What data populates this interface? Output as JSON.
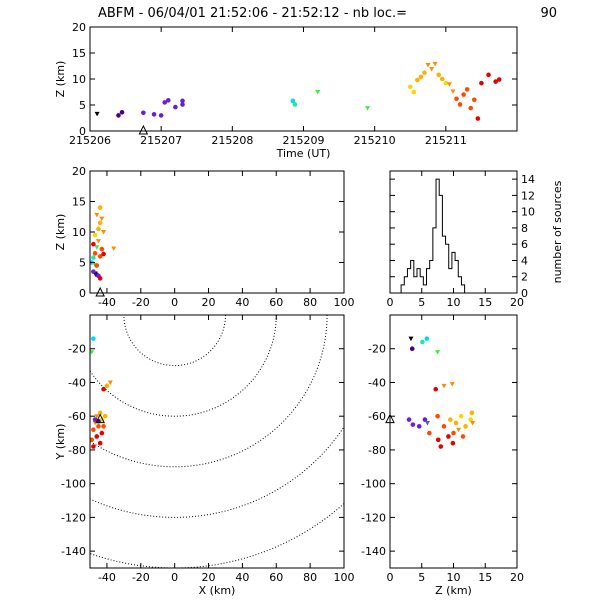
{
  "title": "ABFM - 06/04/01 21:52:06 - 21:52:12 - nb loc.=",
  "count": "90",
  "colors": [
    "#000000",
    "#4b0082",
    "#6a1fd6",
    "#3a5bff",
    "#00d8ff",
    "#22e8a8",
    "#3ef03e",
    "#ffd400",
    "#ffb000",
    "#ff8c00",
    "#ff4a00",
    "#e60000"
  ],
  "chart_data": [
    {
      "type": "scatter",
      "name": "z-vs-time",
      "xlabel": "Time (UT)",
      "ylabel": "Z (km)",
      "xlim": [
        215206,
        215212
      ],
      "ylim": [
        0,
        20
      ],
      "xticks": [
        "215206",
        "215207",
        "215208",
        "215209",
        "215210",
        "215211"
      ],
      "yticks": [
        "0",
        "5",
        "10",
        "15",
        "20"
      ],
      "station_marker": {
        "x": 215206.75,
        "y": 0
      },
      "points": [
        {
          "x": 215206.1,
          "y": 3.3,
          "c": 0
        },
        {
          "x": 215206.4,
          "y": 3.0,
          "c": 1
        },
        {
          "x": 215206.45,
          "y": 3.6,
          "c": 1
        },
        {
          "x": 215206.75,
          "y": 3.5,
          "c": 2
        },
        {
          "x": 215206.9,
          "y": 3.2,
          "c": 2
        },
        {
          "x": 215207.0,
          "y": 3.0,
          "c": 2
        },
        {
          "x": 215207.05,
          "y": 5.5,
          "c": 2
        },
        {
          "x": 215207.1,
          "y": 5.9,
          "c": 2
        },
        {
          "x": 215207.2,
          "y": 4.6,
          "c": 2
        },
        {
          "x": 215207.3,
          "y": 5.8,
          "c": 2
        },
        {
          "x": 215207.3,
          "y": 5.1,
          "c": 2
        },
        {
          "x": 215208.85,
          "y": 5.8,
          "c": 4
        },
        {
          "x": 215208.88,
          "y": 5.1,
          "c": 5
        },
        {
          "x": 215209.2,
          "y": 7.5,
          "c": 6
        },
        {
          "x": 215209.9,
          "y": 4.4,
          "c": 6
        },
        {
          "x": 215210.5,
          "y": 8.5,
          "c": 7
        },
        {
          "x": 215210.55,
          "y": 7.5,
          "c": 7
        },
        {
          "x": 215210.6,
          "y": 9.8,
          "c": 8
        },
        {
          "x": 215210.65,
          "y": 10.4,
          "c": 8
        },
        {
          "x": 215210.7,
          "y": 11.2,
          "c": 8
        },
        {
          "x": 215210.75,
          "y": 12.7,
          "c": 9
        },
        {
          "x": 215210.8,
          "y": 11.9,
          "c": 9
        },
        {
          "x": 215210.85,
          "y": 12.9,
          "c": 9
        },
        {
          "x": 215210.9,
          "y": 10.8,
          "c": 8
        },
        {
          "x": 215210.95,
          "y": 10.0,
          "c": 8
        },
        {
          "x": 215211.0,
          "y": 9.2,
          "c": 7
        },
        {
          "x": 215211.05,
          "y": 9.0,
          "c": 9
        },
        {
          "x": 215211.1,
          "y": 7.6,
          "c": 9
        },
        {
          "x": 215211.15,
          "y": 6.2,
          "c": 10
        },
        {
          "x": 215211.2,
          "y": 5.1,
          "c": 10
        },
        {
          "x": 215211.25,
          "y": 7.0,
          "c": 10
        },
        {
          "x": 215211.3,
          "y": 8.0,
          "c": 10
        },
        {
          "x": 215211.35,
          "y": 4.4,
          "c": 10
        },
        {
          "x": 215211.4,
          "y": 6.0,
          "c": 10
        },
        {
          "x": 215211.45,
          "y": 2.4,
          "c": 11
        },
        {
          "x": 215211.5,
          "y": 9.2,
          "c": 11
        },
        {
          "x": 215211.6,
          "y": 10.8,
          "c": 11
        },
        {
          "x": 215211.7,
          "y": 9.5,
          "c": 11
        },
        {
          "x": 215211.75,
          "y": 9.9,
          "c": 11
        }
      ]
    },
    {
      "type": "scatter",
      "name": "z-vs-x",
      "ylabel": "Z (km)",
      "xlim": [
        -50,
        100
      ],
      "ylim": [
        0,
        20
      ],
      "xticks": [
        "-40",
        "-20",
        "0",
        "20",
        "40",
        "60",
        "80",
        "100"
      ],
      "yticks": [
        "0",
        "5",
        "10",
        "15",
        "20"
      ],
      "station_marker": {
        "x": -44,
        "y": 0
      },
      "points": [
        {
          "x": -47,
          "y": 3.2,
          "c": 0
        },
        {
          "x": -46,
          "y": 3.0,
          "c": 1
        },
        {
          "x": -48,
          "y": 3.5,
          "c": 2
        },
        {
          "x": -45,
          "y": 2.8,
          "c": 2
        },
        {
          "x": -49,
          "y": 5.0,
          "c": 4
        },
        {
          "x": -48,
          "y": 5.8,
          "c": 5
        },
        {
          "x": -47,
          "y": 4.6,
          "c": 6
        },
        {
          "x": -46,
          "y": 7.5,
          "c": 6
        },
        {
          "x": -47,
          "y": 9.5,
          "c": 7
        },
        {
          "x": -45,
          "y": 10.5,
          "c": 8
        },
        {
          "x": -44,
          "y": 11.5,
          "c": 8
        },
        {
          "x": -46,
          "y": 12.8,
          "c": 9
        },
        {
          "x": -43,
          "y": 12.2,
          "c": 9
        },
        {
          "x": -45,
          "y": 8.5,
          "c": 9
        },
        {
          "x": -42,
          "y": 10.0,
          "c": 9
        },
        {
          "x": -47,
          "y": 6.5,
          "c": 10
        },
        {
          "x": -44,
          "y": 6.0,
          "c": 10
        },
        {
          "x": -46,
          "y": 4.5,
          "c": 10
        },
        {
          "x": -43,
          "y": 7.2,
          "c": 10
        },
        {
          "x": -48,
          "y": 8.0,
          "c": 11
        },
        {
          "x": -44,
          "y": 2.4,
          "c": 11
        },
        {
          "x": -42,
          "y": 6.4,
          "c": 11
        },
        {
          "x": -36,
          "y": 7.3,
          "c": 9
        },
        {
          "x": -44,
          "y": 14.0,
          "c": 8
        }
      ]
    },
    {
      "type": "bar",
      "name": "source-histogram",
      "ylabel": "number of sources",
      "xlim": [
        0,
        20
      ],
      "ylim": [
        0,
        15
      ],
      "xticks": [
        "0",
        "5",
        "10",
        "15",
        "20"
      ],
      "yticks": [
        "0",
        "2",
        "4",
        "6",
        "8",
        "10",
        "12",
        "14"
      ],
      "bin_width": 0.5,
      "x": [
        2.0,
        2.5,
        3.0,
        3.5,
        4.0,
        4.5,
        5.0,
        5.5,
        6.0,
        6.5,
        7.0,
        7.5,
        8.0,
        8.5,
        9.0,
        9.5,
        10.0,
        10.5,
        11.0,
        11.5,
        12.0
      ],
      "values": [
        1,
        2,
        3,
        4,
        2,
        3,
        2,
        1,
        3,
        4,
        8,
        14,
        12,
        7,
        6,
        3,
        5,
        4,
        2,
        1,
        0
      ]
    },
    {
      "type": "scatter",
      "name": "y-vs-x",
      "xlabel": "X (km)",
      "ylabel": "Y (km)",
      "xlim": [
        -50,
        100
      ],
      "ylim": [
        -150,
        0
      ],
      "xticks": [
        "-40",
        "-20",
        "0",
        "20",
        "40",
        "60",
        "80",
        "100"
      ],
      "yticks": [
        "-140",
        "-120",
        "-100",
        "-80",
        "-60",
        "-40",
        "-20"
      ],
      "range_rings_km": [
        30,
        60,
        90,
        120,
        150
      ],
      "ring_center": {
        "x": 0,
        "y": 0
      },
      "station_marker": {
        "x": -44,
        "y": -62
      },
      "points": [
        {
          "x": -48,
          "y": -14,
          "c": 4
        },
        {
          "x": -49,
          "y": -22,
          "c": 6
        },
        {
          "x": -38,
          "y": -40,
          "c": 9
        },
        {
          "x": -42,
          "y": -44,
          "c": 11
        },
        {
          "x": -40,
          "y": -42,
          "c": 8
        },
        {
          "x": -44,
          "y": -58,
          "c": 8
        },
        {
          "x": -46,
          "y": -60,
          "c": 9
        },
        {
          "x": -43,
          "y": -62,
          "c": 7
        },
        {
          "x": -47,
          "y": -64,
          "c": 9
        },
        {
          "x": -45,
          "y": -66,
          "c": 10
        },
        {
          "x": -48,
          "y": -68,
          "c": 10
        },
        {
          "x": -43,
          "y": -70,
          "c": 11
        },
        {
          "x": -46,
          "y": -72,
          "c": 11
        },
        {
          "x": -49,
          "y": -74,
          "c": 10
        },
        {
          "x": -44,
          "y": -76,
          "c": 11
        },
        {
          "x": -47,
          "y": -62,
          "c": 2
        },
        {
          "x": -45,
          "y": -63,
          "c": 1
        },
        {
          "x": -42,
          "y": -66,
          "c": 10
        },
        {
          "x": -41,
          "y": -60,
          "c": 8
        },
        {
          "x": -48,
          "y": -78,
          "c": 11
        }
      ]
    },
    {
      "type": "scatter",
      "name": "y-vs-z",
      "xlabel": "Z (km)",
      "xlim": [
        0,
        20
      ],
      "ylim": [
        -150,
        0
      ],
      "xticks": [
        "0",
        "5",
        "10",
        "15",
        "20"
      ],
      "yticks": [
        "-140",
        "-120",
        "-100",
        "-80",
        "-60",
        "-40",
        "-20"
      ],
      "station_marker": {
        "x": 0,
        "y": -62
      },
      "points": [
        {
          "x": 3.3,
          "y": -14,
          "c": 0
        },
        {
          "x": 3.5,
          "y": -20,
          "c": 1
        },
        {
          "x": 5.8,
          "y": -14,
          "c": 4
        },
        {
          "x": 5.1,
          "y": -16,
          "c": 5
        },
        {
          "x": 7.5,
          "y": -22,
          "c": 6
        },
        {
          "x": 8.5,
          "y": -42,
          "c": 9
        },
        {
          "x": 9.8,
          "y": -41,
          "c": 9
        },
        {
          "x": 7.2,
          "y": -44,
          "c": 11
        },
        {
          "x": 3.0,
          "y": -62,
          "c": 2
        },
        {
          "x": 3.6,
          "y": -65,
          "c": 2
        },
        {
          "x": 5.5,
          "y": -62,
          "c": 2
        },
        {
          "x": 4.6,
          "y": -66,
          "c": 2
        },
        {
          "x": 5.9,
          "y": -64,
          "c": 3
        },
        {
          "x": 7.5,
          "y": -60,
          "c": 10
        },
        {
          "x": 8.5,
          "y": -66,
          "c": 10
        },
        {
          "x": 9.5,
          "y": -62,
          "c": 8
        },
        {
          "x": 10.4,
          "y": -64,
          "c": 8
        },
        {
          "x": 11.2,
          "y": -60,
          "c": 7
        },
        {
          "x": 12.7,
          "y": -62,
          "c": 7
        },
        {
          "x": 11.9,
          "y": -66,
          "c": 8
        },
        {
          "x": 12.9,
          "y": -58,
          "c": 8
        },
        {
          "x": 10.8,
          "y": -68,
          "c": 9
        },
        {
          "x": 10.0,
          "y": -70,
          "c": 10
        },
        {
          "x": 9.2,
          "y": -72,
          "c": 11
        },
        {
          "x": 7.6,
          "y": -74,
          "c": 11
        },
        {
          "x": 6.2,
          "y": -70,
          "c": 10
        },
        {
          "x": 8.0,
          "y": -78,
          "c": 11
        },
        {
          "x": 9.9,
          "y": -76,
          "c": 11
        },
        {
          "x": 11.5,
          "y": -72,
          "c": 10
        },
        {
          "x": 13.0,
          "y": -64,
          "c": 9
        }
      ]
    }
  ]
}
